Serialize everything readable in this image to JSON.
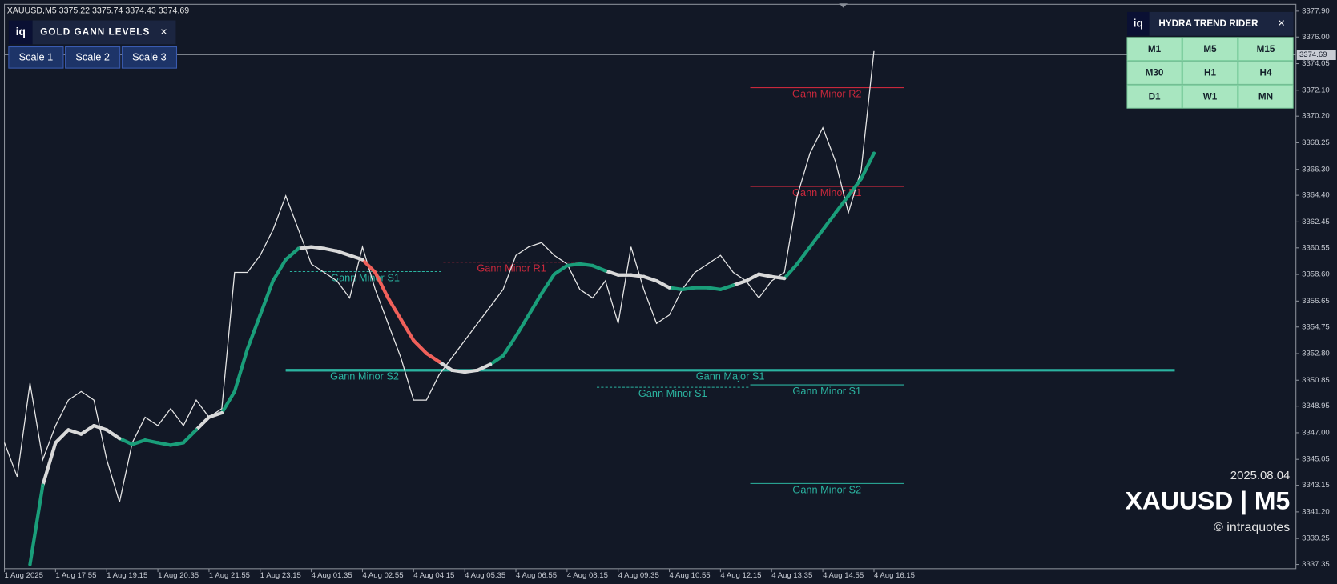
{
  "chart_data": {
    "type": "line",
    "header": "XAUUSD,M5  3375.22 3375.74 3374.43 3374.69",
    "xlim": [
      0,
      404
    ],
    "ylim": [
      3337.04,
      3378.4
    ],
    "xticks": [
      {
        "value": 0,
        "label": "1 Aug 2025"
      },
      {
        "value": 16,
        "label": "1 Aug 17:55"
      },
      {
        "value": 32,
        "label": "1 Aug 19:15"
      },
      {
        "value": 48,
        "label": "1 Aug 20:35"
      },
      {
        "value": 64,
        "label": "1 Aug 21:55"
      },
      {
        "value": 80,
        "label": "1 Aug 23:15"
      },
      {
        "value": 96,
        "label": "4 Aug 01:35"
      },
      {
        "value": 112,
        "label": "4 Aug 02:55"
      },
      {
        "value": 128,
        "label": "4 Aug 04:15"
      },
      {
        "value": 144,
        "label": "4 Aug 05:35"
      },
      {
        "value": 160,
        "label": "4 Aug 06:55"
      },
      {
        "value": 176,
        "label": "4 Aug 08:15"
      },
      {
        "value": 192,
        "label": "4 Aug 09:35"
      },
      {
        "value": 208,
        "label": "4 Aug 10:55"
      },
      {
        "value": 224,
        "label": "4 Aug 12:15"
      },
      {
        "value": 240,
        "label": "4 Aug 13:35"
      },
      {
        "value": 256,
        "label": "4 Aug 14:55"
      },
      {
        "value": 272,
        "label": "4 Aug 16:15"
      }
    ],
    "yticks": [
      {
        "value": 3377.9,
        "label": "3377.90"
      },
      {
        "value": 3376,
        "label": "3376.00"
      },
      3374.05,
      {
        "value": 3372.1,
        "label": "3372.10"
      },
      {
        "value": 3370.2,
        "label": "3370.20"
      },
      3368.25,
      {
        "value": 3366.3,
        "label": "3366.30"
      },
      {
        "value": 3364.4,
        "label": "3364.40"
      },
      3362.45,
      3360.55,
      {
        "value": 3358.6,
        "label": "3358.60"
      },
      3356.65,
      3354.75,
      {
        "value": 3352.8,
        "label": "3352.80"
      },
      3350.85,
      3348.95,
      {
        "value": 3347,
        "label": "3347.00"
      },
      3345.05,
      3343.15,
      {
        "value": 3341.2,
        "label": "3341.20"
      },
      3339.25,
      3337.35
    ],
    "series": [
      {
        "name": "price",
        "color": "#e6e6e6",
        "x": [
          0,
          4,
          8,
          12,
          16,
          20,
          24,
          28,
          32,
          36,
          40,
          44,
          48,
          52,
          56,
          60,
          64,
          68,
          72,
          76,
          80,
          84,
          88,
          92,
          96,
          100,
          104,
          108,
          112,
          116,
          120,
          124,
          128,
          132,
          136,
          140,
          144,
          148,
          152,
          156,
          160,
          164,
          168,
          172,
          176,
          180,
          184,
          188,
          192,
          196,
          200,
          204,
          208,
          212,
          216,
          220,
          224,
          228,
          232,
          236,
          240,
          244,
          248,
          252,
          256,
          260,
          264,
          268,
          272
        ],
        "values": [
          3346.27,
          3343.78,
          3350.64,
          3345.03,
          3347.52,
          3349.39,
          3350.02,
          3349.39,
          3345.03,
          3341.91,
          3346.27,
          3348.14,
          3347.52,
          3348.77,
          3347.52,
          3349.39,
          3348.14,
          3348.77,
          3358.75,
          3358.75,
          3360.0,
          3361.87,
          3364.36,
          3361.87,
          3359.37,
          3358.75,
          3358.13,
          3356.88,
          3360.62,
          3357.5,
          3355.01,
          3352.51,
          3349.39,
          3349.39,
          3351.26,
          3352.51,
          3353.76,
          3355.01,
          3356.25,
          3357.5,
          3360.0,
          3360.62,
          3360.93,
          3360.0,
          3359.37,
          3357.5,
          3356.88,
          3358.13,
          3355.01,
          3360.62,
          3357.5,
          3355.01,
          3355.63,
          3357.5,
          3358.75,
          3359.37,
          3360.0,
          3358.75,
          3358.13,
          3356.88,
          3358.13,
          3358.75,
          3364.36,
          3367.48,
          3369.35,
          3366.86,
          3363.12,
          3366.24,
          3374.97
        ]
      },
      {
        "name": "trend",
        "x": [
          8,
          12,
          16,
          20,
          24,
          28,
          32,
          36,
          40,
          44,
          48,
          52,
          56,
          60,
          64,
          68,
          72,
          76,
          80,
          84,
          88,
          92,
          96,
          100,
          104,
          108,
          112,
          116,
          120,
          124,
          128,
          132,
          136,
          140,
          144,
          148,
          152,
          156,
          160,
          164,
          168,
          172,
          176,
          180,
          184,
          188,
          192,
          196,
          200,
          204,
          208,
          212,
          216,
          220,
          224,
          228,
          232,
          236,
          240,
          244,
          248,
          252,
          256,
          260,
          264,
          268,
          272
        ],
        "values": [
          3337.35,
          3343.15,
          3346.27,
          3347.21,
          3346.9,
          3347.52,
          3347.21,
          3346.58,
          3346.15,
          3346.46,
          3346.27,
          3346.09,
          3346.27,
          3347.21,
          3348.14,
          3348.46,
          3350.02,
          3353.13,
          3355.63,
          3358.13,
          3359.69,
          3360.5,
          3360.62,
          3360.5,
          3360.31,
          3360.0,
          3359.69,
          3358.75,
          3356.88,
          3355.32,
          3353.76,
          3352.82,
          3352.2,
          3351.58,
          3351.45,
          3351.58,
          3352.01,
          3352.64,
          3354.07,
          3355.63,
          3357.19,
          3358.62,
          3359.25,
          3359.37,
          3359.25,
          3358.87,
          3358.56,
          3358.56,
          3358.44,
          3358.13,
          3357.63,
          3357.5,
          3357.63,
          3357.63,
          3357.5,
          3357.81,
          3358.13,
          3358.62,
          3358.44,
          3358.31,
          3359.37,
          3360.62,
          3361.87,
          3363.12,
          3364.36,
          3365.61,
          3367.48
        ],
        "colors": [
          "#1a9e7a",
          "#1a9e7a",
          "#d9d9d9",
          "#d9d9d9",
          "#d9d9d9",
          "#d9d9d9",
          "#d9d9d9",
          "#d9d9d9",
          "#1a9e7a",
          "#1a9e7a",
          "#1a9e7a",
          "#1a9e7a",
          "#1a9e7a",
          "#1a9e7a",
          "#d9d9d9",
          "#d9d9d9",
          "#1a9e7a",
          "#1a9e7a",
          "#1a9e7a",
          "#1a9e7a",
          "#1a9e7a",
          "#1a9e7a",
          "#d9d9d9",
          "#d9d9d9",
          "#d9d9d9",
          "#d9d9d9",
          "#d9d9d9",
          "#f0605a",
          "#f0605a",
          "#f0605a",
          "#f0605a",
          "#f0605a",
          "#f0605a",
          "#d9d9d9",
          "#d9d9d9",
          "#d9d9d9",
          "#d9d9d9",
          "#1a9e7a",
          "#1a9e7a",
          "#1a9e7a",
          "#1a9e7a",
          "#1a9e7a",
          "#1a9e7a",
          "#1a9e7a",
          "#1a9e7a",
          "#1a9e7a",
          "#d9d9d9",
          "#d9d9d9",
          "#d9d9d9",
          "#d9d9d9",
          "#d9d9d9",
          "#1a9e7a",
          "#1a9e7a",
          "#1a9e7a",
          "#1a9e7a",
          "#1a9e7a",
          "#d9d9d9",
          "#d9d9d9",
          "#d9d9d9",
          "#d9d9d9",
          "#1a9e7a",
          "#1a9e7a",
          "#1a9e7a",
          "#1a9e7a",
          "#1a9e7a",
          "#1a9e7a",
          "#1a9e7a"
        ]
      }
    ],
    "levels": [
      {
        "name": "Gann Minor R2",
        "value": 3372.29,
        "x_range": [
          233.3,
          281.3
        ],
        "color": "#c8283c",
        "style": "solid"
      },
      {
        "name": "Gann Minor R1",
        "value": 3365.05,
        "x_range": [
          233.3,
          281.3
        ],
        "color": "#c8283c",
        "style": "solid"
      },
      {
        "name": "Gann Minor R1",
        "value": 3359.5,
        "x_range": [
          137.3,
          180
        ],
        "color": "#c8283c",
        "style": "dotted"
      },
      {
        "name": "Gann Minor S1",
        "value": 3358.81,
        "x_range": [
          89.3,
          136.5
        ],
        "color": "#2bb3a0",
        "style": "dotted"
      },
      {
        "name": "Gann Major S1",
        "value": 3351.58,
        "x_range": [
          88,
          366.1
        ],
        "color": "#2bb3a0",
        "style": "thick"
      },
      {
        "name": "Gann Minor S2",
        "value": 3351.58,
        "x_range": [
          88,
          137.3
        ],
        "color": "#2bb3a0",
        "style": "thick"
      },
      {
        "name": "Gann Minor S1",
        "value": 3350.33,
        "x_range": [
          185.3,
          232.8
        ],
        "color": "#2bb3a0",
        "style": "dotted"
      },
      {
        "name": "Gann Minor S1",
        "value": 3350.51,
        "x_range": [
          233.3,
          281.3
        ],
        "color": "#2bb3a0",
        "style": "solid"
      },
      {
        "name": "Gann Minor S2",
        "value": 3343.28,
        "x_range": [
          233.3,
          281.3
        ],
        "color": "#2bb3a0",
        "style": "solid"
      }
    ],
    "price_tag": {
      "value": 3374.69
    },
    "watermark": {
      "date": "2025.08.04",
      "symbol": "XAUUSD | M5",
      "credit": "© intraquotes"
    }
  },
  "panels": {
    "gann": {
      "logo": "iq",
      "title": "GOLD GANN LEVELS",
      "close": "×",
      "buttons": [
        "Scale 1",
        "Scale 2",
        "Scale 3"
      ]
    },
    "hydra": {
      "logo": "iq",
      "title": "HYDRA TREND RIDER",
      "close": "×",
      "timeframes": [
        "M1",
        "M5",
        "M15",
        "M30",
        "H1",
        "H4",
        "D1",
        "W1",
        "MN"
      ]
    }
  }
}
